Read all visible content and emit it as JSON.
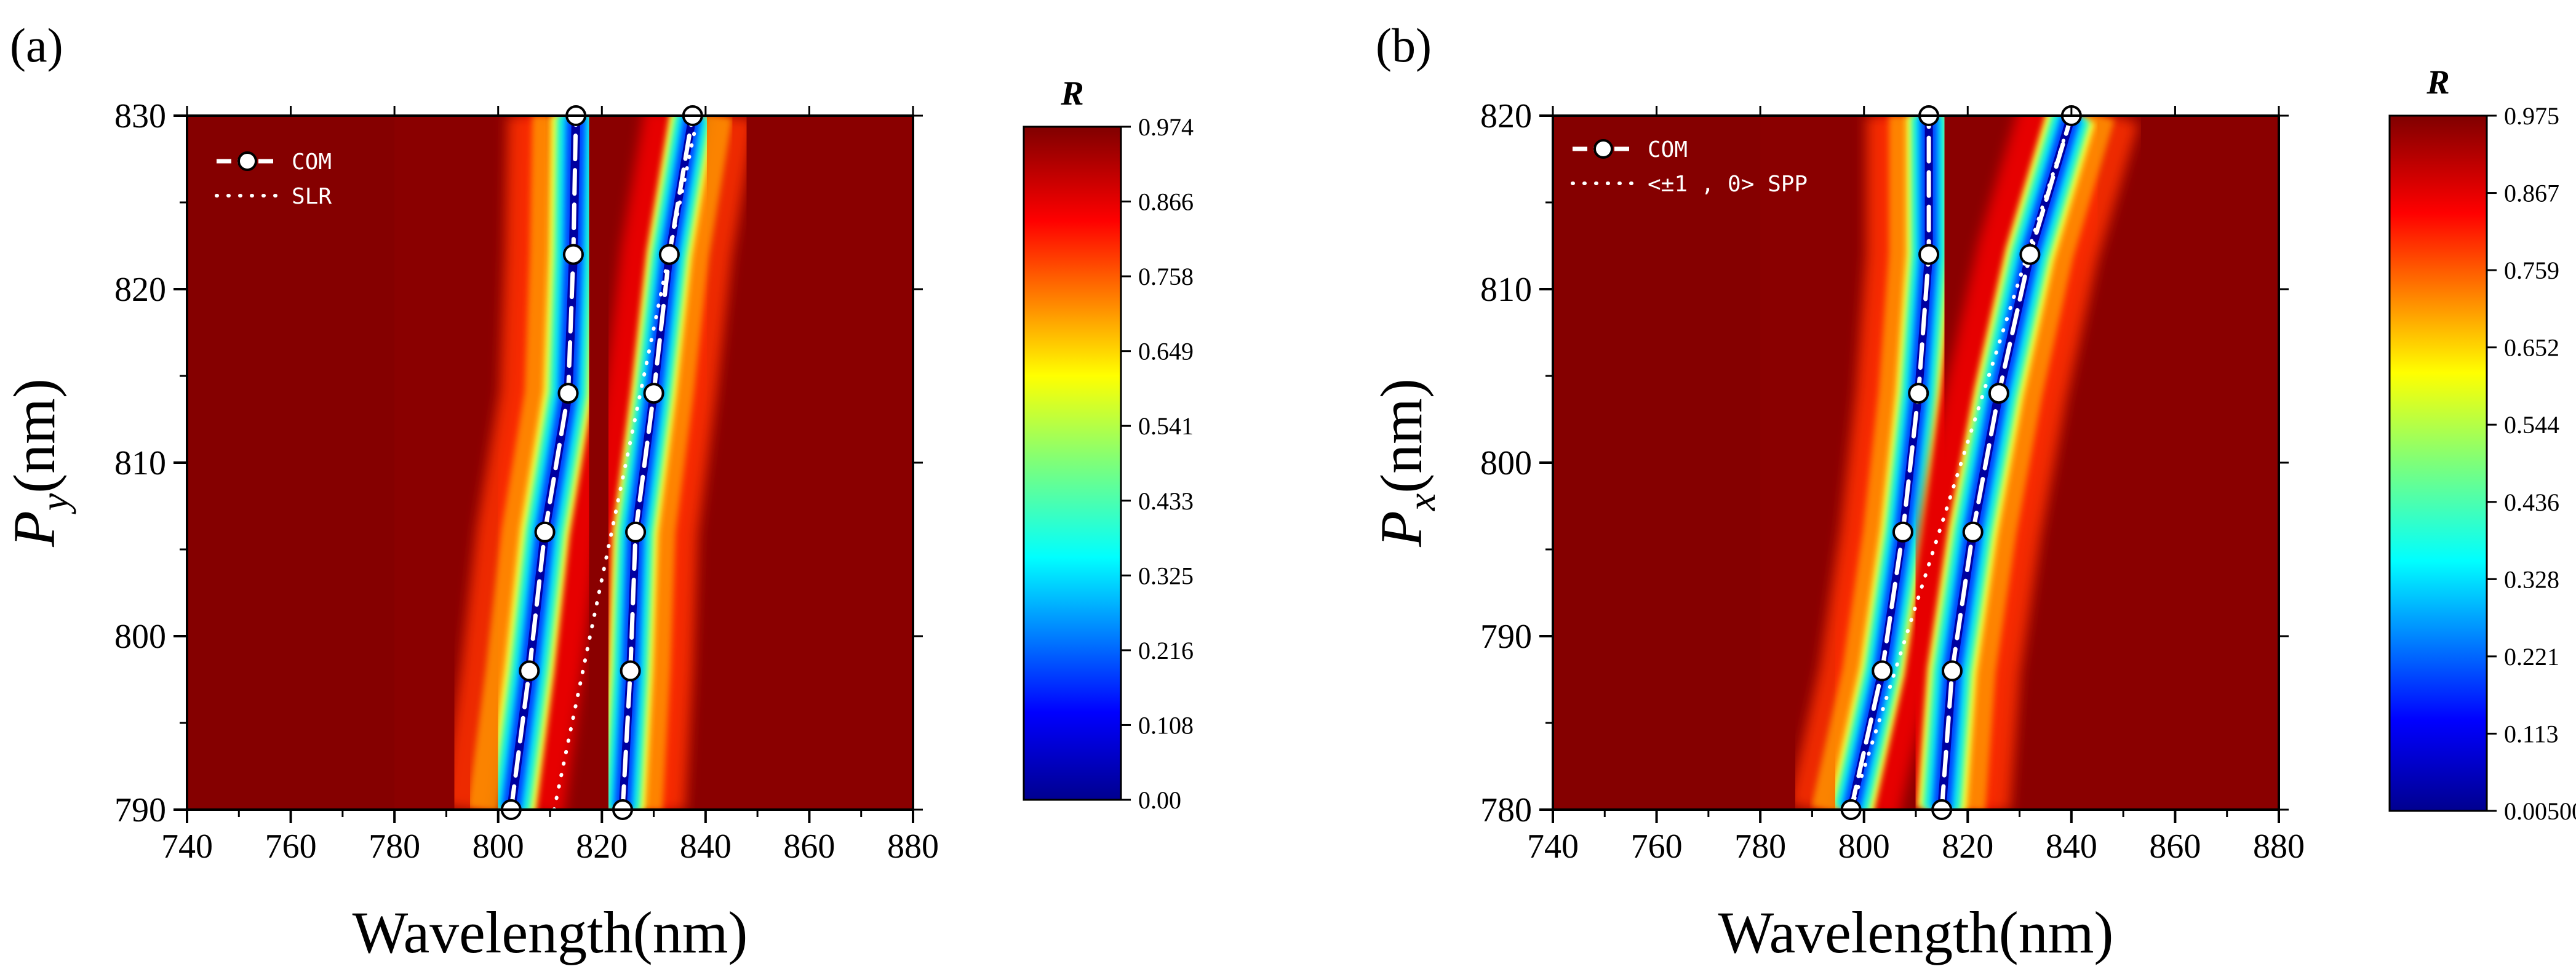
{
  "chart_data": [
    {
      "panel_label": "(a)",
      "type": "heatmap",
      "xlabel": "Wavelength(nm)",
      "ylabel_main": "P",
      "ylabel_sub": "y",
      "ylabel_unit": "(nm)",
      "xlim": [
        740,
        880
      ],
      "ylim": [
        790,
        830
      ],
      "xticks": [
        "740",
        "760",
        "780",
        "800",
        "820",
        "840",
        "860",
        "880"
      ],
      "yticks": [
        "790",
        "800",
        "810",
        "820",
        "830"
      ],
      "colorbar": {
        "title": "R",
        "range": [
          0.0,
          0.974
        ],
        "ticks": [
          "0.00",
          "0.108",
          "0.216",
          "0.325",
          "0.433",
          "0.541",
          "0.649",
          "0.758",
          "0.866",
          "0.974"
        ]
      },
      "bands": [
        {
          "name": "left dip",
          "x": [
            802.5,
            806,
            809,
            813.5,
            814.5,
            815
          ],
          "y": [
            790,
            798,
            806,
            814,
            822,
            830
          ],
          "width_nm": 6,
          "tail": "left"
        },
        {
          "name": "right dip",
          "x": [
            824,
            825.5,
            826.5,
            830,
            833,
            837.5
          ],
          "y": [
            790,
            798,
            806,
            814,
            822,
            830
          ],
          "width_nm": 5.5,
          "tail": "right"
        }
      ],
      "legend": [
        {
          "label": "COM",
          "style": "dashed-circle"
        },
        {
          "label": "SLR",
          "style": "dotted"
        }
      ],
      "series": [
        {
          "name": "COM",
          "points": [
            [
              802.5,
              790
            ],
            [
              806,
              798
            ],
            [
              809,
              806
            ],
            [
              813.5,
              814
            ],
            [
              814.5,
              822
            ],
            [
              815,
              830
            ]
          ]
        },
        {
          "name": "COM",
          "points": [
            [
              824,
              790
            ],
            [
              825.5,
              798
            ],
            [
              826.5,
              806
            ],
            [
              830,
              814
            ],
            [
              833,
              822
            ],
            [
              837.5,
              830
            ]
          ]
        },
        {
          "name": "SLR",
          "points": [
            [
              810.8,
              790
            ],
            [
              838.5,
              830
            ]
          ]
        }
      ]
    },
    {
      "panel_label": "(b)",
      "type": "heatmap",
      "xlabel": "Wavelength(nm)",
      "ylabel_main": "P",
      "ylabel_sub": "x",
      "ylabel_unit": "(nm)",
      "xlim": [
        740,
        880
      ],
      "ylim": [
        780,
        820
      ],
      "xticks": [
        "740",
        "760",
        "780",
        "800",
        "820",
        "840",
        "860",
        "880"
      ],
      "yticks": [
        "780",
        "790",
        "800",
        "810",
        "820"
      ],
      "colorbar": {
        "title": "R",
        "range": [
          0.005,
          0.975
        ],
        "ticks": [
          "0.00500",
          "0.113",
          "0.221",
          "0.328",
          "0.436",
          "0.544",
          "0.652",
          "0.759",
          "0.867",
          "0.975"
        ]
      },
      "bands": [
        {
          "name": "left dip",
          "x": [
            797.5,
            803.5,
            807.5,
            810.5,
            812.5,
            812.5
          ],
          "y": [
            780,
            788,
            796,
            804,
            812,
            820
          ],
          "width_nm": 5.5,
          "tail": "left"
        },
        {
          "name": "right dip",
          "x": [
            815,
            817,
            821,
            826,
            832,
            840
          ],
          "y": [
            780,
            788,
            796,
            804,
            812,
            820
          ],
          "width_nm": 6,
          "tail": "right"
        }
      ],
      "legend": [
        {
          "label": "COM",
          "style": "dashed-circle"
        },
        {
          "label": "<±1 , 0> SPP",
          "style": "dotted"
        }
      ],
      "series": [
        {
          "name": "COM",
          "points": [
            [
              797.5,
              780
            ],
            [
              803.5,
              788
            ],
            [
              807.5,
              796
            ],
            [
              810.5,
              804
            ],
            [
              812.5,
              812
            ],
            [
              812.5,
              820
            ]
          ]
        },
        {
          "name": "COM",
          "points": [
            [
              815,
              780
            ],
            [
              817,
              788
            ],
            [
              821,
              796
            ],
            [
              826,
              804
            ],
            [
              832,
              812
            ],
            [
              840,
              820
            ]
          ]
        },
        {
          "name": "<±1 , 0> SPP",
          "points": [
            [
              797.5,
              780
            ],
            [
              840,
              820
            ]
          ]
        }
      ]
    }
  ]
}
